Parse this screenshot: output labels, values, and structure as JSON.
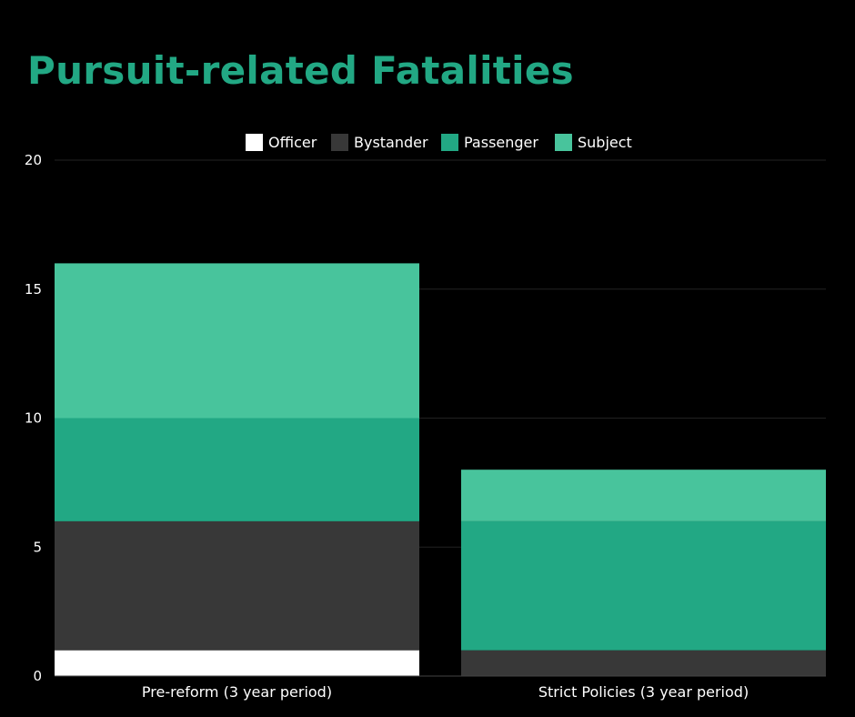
{
  "chart_data": {
    "type": "bar",
    "stacked": true,
    "title": "Pursuit-related Fatalities",
    "categories": [
      "Pre-reform (3 year period)",
      "Strict Policies (3 year period)"
    ],
    "series": [
      {
        "name": "Officer",
        "values": [
          1,
          0
        ],
        "color": "#FFFFFF"
      },
      {
        "name": "Bystander",
        "values": [
          5,
          1
        ],
        "color": "#383838"
      },
      {
        "name": "Passenger",
        "values": [
          4,
          5
        ],
        "color": "#22A884"
      },
      {
        "name": "Subject",
        "values": [
          6,
          2
        ],
        "color": "#48C49C"
      }
    ],
    "ylim": [
      0,
      20
    ],
    "yticks": [
      0,
      5,
      10,
      15,
      20
    ],
    "grid": true,
    "legend_position": "top-center",
    "xlabel": "",
    "ylabel": "",
    "colors": {
      "background": "#000000",
      "title": "#22A884",
      "grid": "#222222",
      "axis": "#444444",
      "text": "#FFFFFF"
    }
  }
}
